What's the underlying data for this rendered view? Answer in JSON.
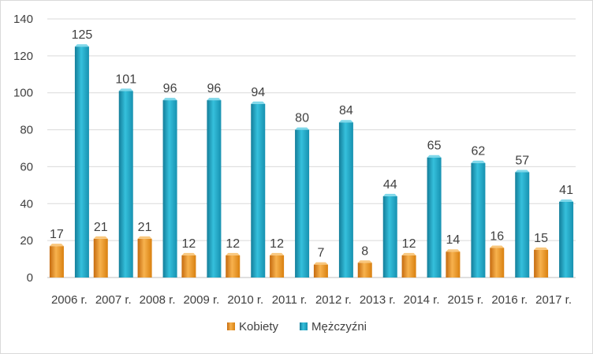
{
  "chart_data": {
    "type": "bar",
    "title": "",
    "xlabel": "",
    "ylabel": "",
    "categories": [
      "2006 r.",
      "2007 r.",
      "2008 r.",
      "2009 r.",
      "2010 r.",
      "2011 r.",
      "2012 r.",
      "2013 r.",
      "2014 r.",
      "2015 r.",
      "2016 r.",
      "2017 r."
    ],
    "series": [
      {
        "name": "Kobiety",
        "color": "#f2a23a",
        "values": [
          17,
          21,
          21,
          12,
          12,
          12,
          7,
          8,
          12,
          14,
          16,
          15
        ]
      },
      {
        "name": "Mężczyźni",
        "color": "#2eb4d1",
        "values": [
          125,
          101,
          96,
          96,
          94,
          80,
          84,
          44,
          65,
          62,
          57,
          41
        ]
      }
    ],
    "ylim": [
      0,
      140
    ],
    "yticks": [
      0,
      20,
      40,
      60,
      80,
      100,
      120,
      140
    ],
    "grid": true,
    "legend": "bottom"
  }
}
